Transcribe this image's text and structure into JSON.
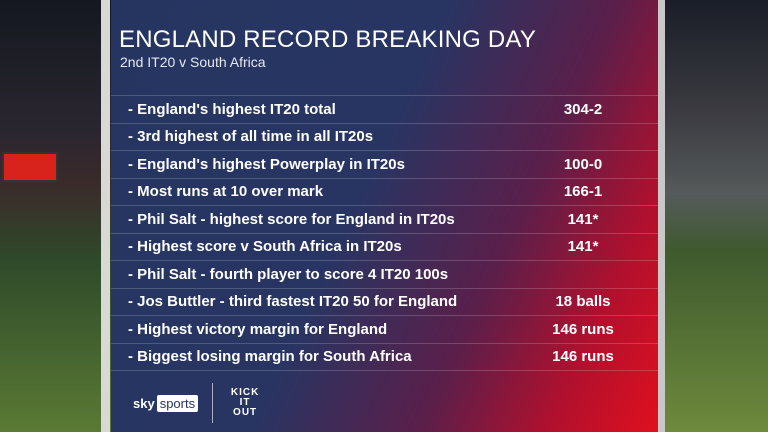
{
  "header": {
    "title": "ENGLAND RECORD BREAKING DAY",
    "subtitle": "2nd IT20 v South Africa"
  },
  "records": [
    {
      "label": "- England's highest IT20 total",
      "value": "304-2"
    },
    {
      "label": "- 3rd highest of all time in all IT20s",
      "value": ""
    },
    {
      "label": "- England's highest Powerplay in IT20s",
      "value": "100-0"
    },
    {
      "label": "- Most runs at 10 over mark",
      "value": "166-1"
    },
    {
      "label": "- Phil Salt - highest score for England in IT20s",
      "value": "141*"
    },
    {
      "label": "- Highest score v South Africa in IT20s",
      "value": "141*"
    },
    {
      "label": "- Phil Salt - fourth player to score 4 IT20 100s",
      "value": ""
    },
    {
      "label": "- Jos Buttler - third fastest IT20 50 for England",
      "value": "18 balls"
    },
    {
      "label": "- Highest victory margin for England",
      "value": "146 runs"
    },
    {
      "label": "- Biggest losing margin for South Africa",
      "value": "146 runs"
    }
  ],
  "footer": {
    "sky": "sky",
    "sports": "sports",
    "kick_it_out": "KICK IT OUT"
  },
  "colors": {
    "panel_blue": "#263560",
    "panel_red": "#e0101e"
  }
}
